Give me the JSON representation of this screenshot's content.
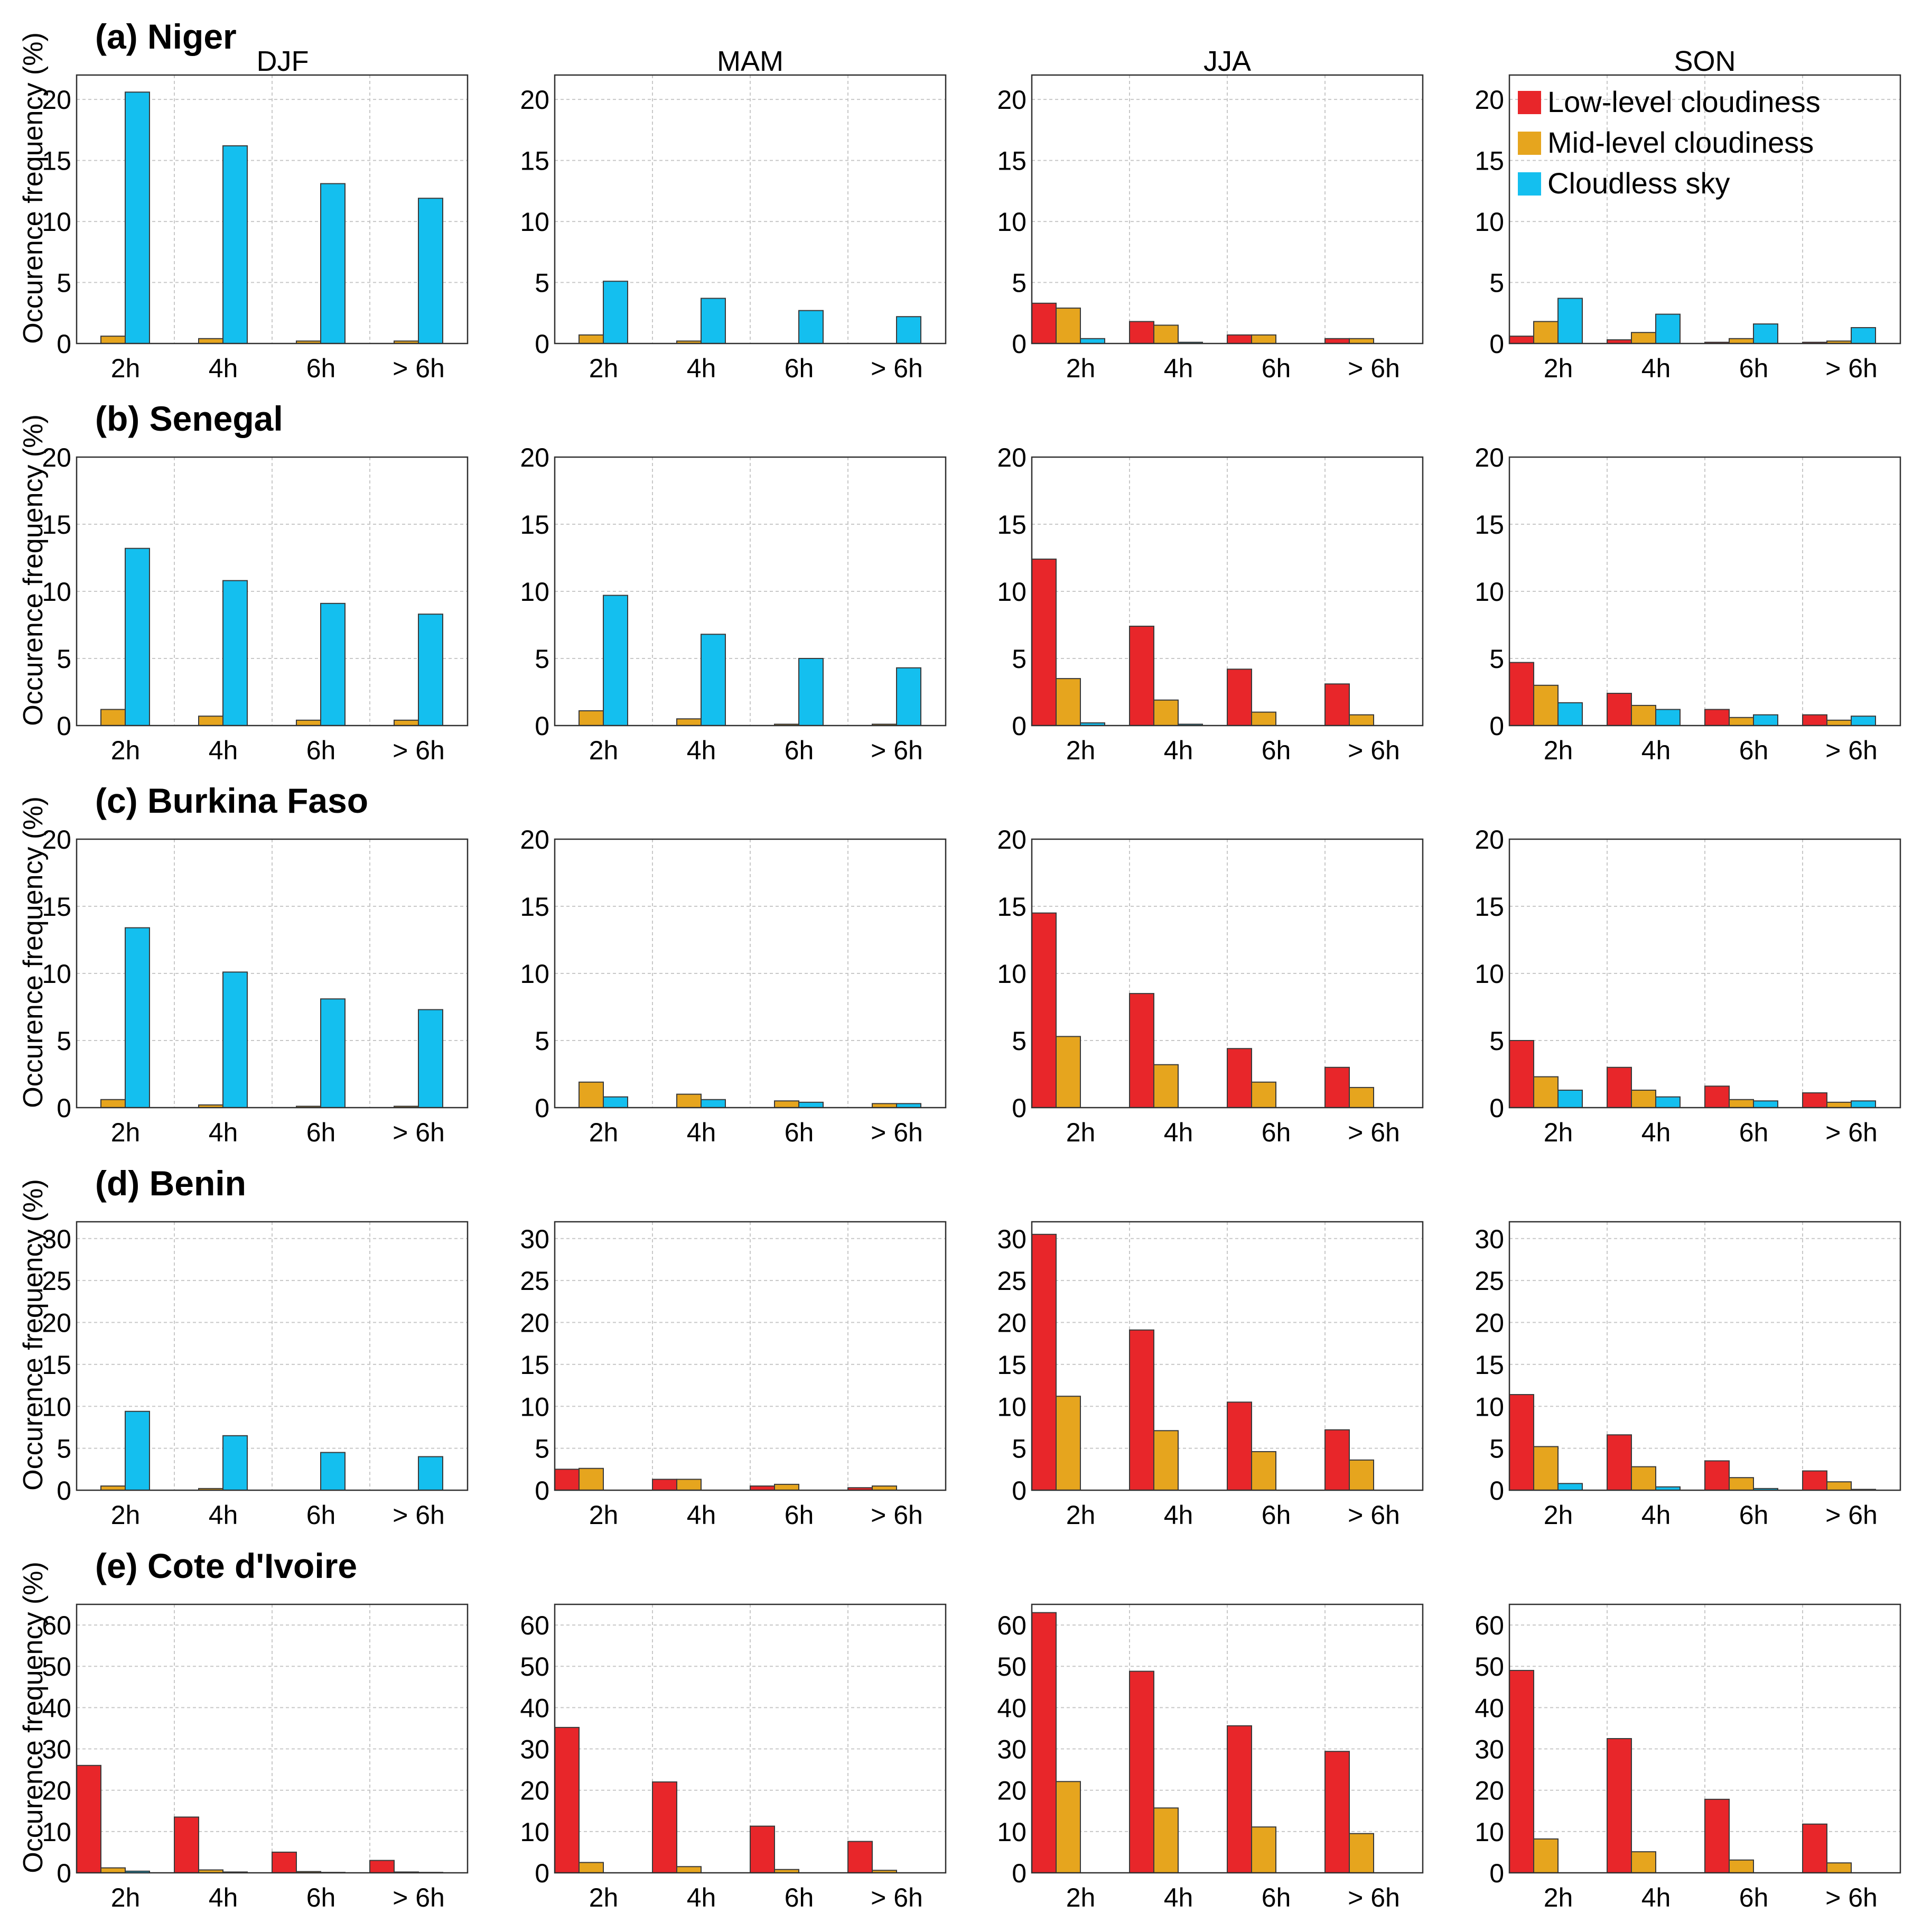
{
  "figure": {
    "ylabel": "Occurence frequency (%)",
    "seasons": [
      "DJF",
      "MAM",
      "JJA",
      "SON"
    ],
    "legend": {
      "placement": "top-right of the SON panel in row (a)",
      "items": [
        {
          "label": "Low-level cloudiness",
          "color": "#e8262a"
        },
        {
          "label": "Mid-level cloudiness",
          "color": "#e6a51e"
        },
        {
          "label": "Cloudless sky",
          "color": "#14bfef"
        }
      ]
    }
  },
  "chart_data": {
    "type": "bar",
    "categories": [
      "2h",
      "4h",
      "6h",
      "> 6h"
    ],
    "series_names": [
      "Low-level cloudiness",
      "Mid-level cloudiness",
      "Cloudless sky"
    ],
    "series_colors": [
      "#e8262a",
      "#e6a51e",
      "#14bfef"
    ],
    "rows": [
      {
        "title": "(a) Niger",
        "ylim": [
          0,
          22
        ],
        "yticks": [
          0,
          5,
          10,
          15,
          20
        ],
        "panels": [
          {
            "season": "DJF",
            "series": [
              {
                "name": "Low-level cloudiness",
                "values": [
                  0,
                  0,
                  0,
                  0
                ]
              },
              {
                "name": "Mid-level cloudiness",
                "values": [
                  0.6,
                  0.4,
                  0.2,
                  0.2
                ]
              },
              {
                "name": "Cloudless sky",
                "values": [
                  20.6,
                  16.2,
                  13.1,
                  11.9
                ]
              }
            ]
          },
          {
            "season": "MAM",
            "series": [
              {
                "name": "Low-level cloudiness",
                "values": [
                  0,
                  0,
                  0,
                  0
                ]
              },
              {
                "name": "Mid-level cloudiness",
                "values": [
                  0.7,
                  0.2,
                  0,
                  0
                ]
              },
              {
                "name": "Cloudless sky",
                "values": [
                  5.1,
                  3.7,
                  2.7,
                  2.2
                ]
              }
            ]
          },
          {
            "season": "JJA",
            "series": [
              {
                "name": "Low-level cloudiness",
                "values": [
                  3.3,
                  1.8,
                  0.7,
                  0.4
                ]
              },
              {
                "name": "Mid-level cloudiness",
                "values": [
                  2.9,
                  1.5,
                  0.7,
                  0.4
                ]
              },
              {
                "name": "Cloudless sky",
                "values": [
                  0.4,
                  0.1,
                  0,
                  0
                ]
              }
            ]
          },
          {
            "season": "SON",
            "series": [
              {
                "name": "Low-level cloudiness",
                "values": [
                  0.6,
                  0.3,
                  0.1,
                  0.1
                ]
              },
              {
                "name": "Mid-level cloudiness",
                "values": [
                  1.8,
                  0.9,
                  0.4,
                  0.2
                ]
              },
              {
                "name": "Cloudless sky",
                "values": [
                  3.7,
                  2.4,
                  1.6,
                  1.3
                ]
              }
            ]
          }
        ]
      },
      {
        "title": "(b) Senegal",
        "ylim": [
          0,
          20
        ],
        "yticks": [
          0,
          5,
          10,
          15,
          20
        ],
        "panels": [
          {
            "season": "DJF",
            "series": [
              {
                "name": "Low-level cloudiness",
                "values": [
                  0,
                  0,
                  0,
                  0
                ]
              },
              {
                "name": "Mid-level cloudiness",
                "values": [
                  1.2,
                  0.7,
                  0.4,
                  0.4
                ]
              },
              {
                "name": "Cloudless sky",
                "values": [
                  13.2,
                  10.8,
                  9.1,
                  8.3
                ]
              }
            ]
          },
          {
            "season": "MAM",
            "series": [
              {
                "name": "Low-level cloudiness",
                "values": [
                  0,
                  0,
                  0,
                  0
                ]
              },
              {
                "name": "Mid-level cloudiness",
                "values": [
                  1.1,
                  0.5,
                  0.1,
                  0.1
                ]
              },
              {
                "name": "Cloudless sky",
                "values": [
                  9.7,
                  6.8,
                  5.0,
                  4.3
                ]
              }
            ]
          },
          {
            "season": "JJA",
            "series": [
              {
                "name": "Low-level cloudiness",
                "values": [
                  12.4,
                  7.4,
                  4.2,
                  3.1
                ]
              },
              {
                "name": "Mid-level cloudiness",
                "values": [
                  3.5,
                  1.9,
                  1.0,
                  0.8
                ]
              },
              {
                "name": "Cloudless sky",
                "values": [
                  0.2,
                  0.1,
                  0,
                  0
                ]
              }
            ]
          },
          {
            "season": "SON",
            "series": [
              {
                "name": "Low-level cloudiness",
                "values": [
                  4.7,
                  2.4,
                  1.2,
                  0.8
                ]
              },
              {
                "name": "Mid-level cloudiness",
                "values": [
                  3.0,
                  1.5,
                  0.6,
                  0.4
                ]
              },
              {
                "name": "Cloudless sky",
                "values": [
                  1.7,
                  1.2,
                  0.8,
                  0.7
                ]
              }
            ]
          }
        ]
      },
      {
        "title": "(c) Burkina Faso",
        "ylim": [
          0,
          20
        ],
        "yticks": [
          0,
          5,
          10,
          15,
          20
        ],
        "panels": [
          {
            "season": "DJF",
            "series": [
              {
                "name": "Low-level cloudiness",
                "values": [
                  0,
                  0,
                  0,
                  0
                ]
              },
              {
                "name": "Mid-level cloudiness",
                "values": [
                  0.6,
                  0.2,
                  0.1,
                  0.1
                ]
              },
              {
                "name": "Cloudless sky",
                "values": [
                  13.4,
                  10.1,
                  8.1,
                  7.3
                ]
              }
            ]
          },
          {
            "season": "MAM",
            "series": [
              {
                "name": "Low-level cloudiness",
                "values": [
                  0,
                  0,
                  0,
                  0
                ]
              },
              {
                "name": "Mid-level cloudiness",
                "values": [
                  1.9,
                  1.0,
                  0.5,
                  0.3
                ]
              },
              {
                "name": "Cloudless sky",
                "values": [
                  0.8,
                  0.6,
                  0.4,
                  0.3
                ]
              }
            ]
          },
          {
            "season": "JJA",
            "series": [
              {
                "name": "Low-level cloudiness",
                "values": [
                  14.5,
                  8.5,
                  4.4,
                  3.0
                ]
              },
              {
                "name": "Mid-level cloudiness",
                "values": [
                  5.3,
                  3.2,
                  1.9,
                  1.5
                ]
              },
              {
                "name": "Cloudless sky",
                "values": [
                  0,
                  0,
                  0,
                  0
                ]
              }
            ]
          },
          {
            "season": "SON",
            "series": [
              {
                "name": "Low-level cloudiness",
                "values": [
                  5.0,
                  3.0,
                  1.6,
                  1.1
                ]
              },
              {
                "name": "Mid-level cloudiness",
                "values": [
                  2.3,
                  1.3,
                  0.6,
                  0.4
                ]
              },
              {
                "name": "Cloudless sky",
                "values": [
                  1.3,
                  0.8,
                  0.5,
                  0.5
                ]
              }
            ]
          }
        ]
      },
      {
        "title": "(d) Benin",
        "ylim": [
          0,
          32
        ],
        "yticks": [
          0,
          5,
          10,
          15,
          20,
          25,
          30
        ],
        "panels": [
          {
            "season": "DJF",
            "series": [
              {
                "name": "Low-level cloudiness",
                "values": [
                  0,
                  0,
                  0,
                  0
                ]
              },
              {
                "name": "Mid-level cloudiness",
                "values": [
                  0.5,
                  0.2,
                  0,
                  0
                ]
              },
              {
                "name": "Cloudless sky",
                "values": [
                  9.4,
                  6.5,
                  4.5,
                  4.0
                ]
              }
            ]
          },
          {
            "season": "MAM",
            "series": [
              {
                "name": "Low-level cloudiness",
                "values": [
                  2.5,
                  1.3,
                  0.5,
                  0.3
                ]
              },
              {
                "name": "Mid-level cloudiness",
                "values": [
                  2.6,
                  1.3,
                  0.7,
                  0.5
                ]
              },
              {
                "name": "Cloudless sky",
                "values": [
                  0,
                  0,
                  0,
                  0
                ]
              }
            ]
          },
          {
            "season": "JJA",
            "series": [
              {
                "name": "Low-level cloudiness",
                "values": [
                  30.5,
                  19.1,
                  10.5,
                  7.2
                ]
              },
              {
                "name": "Mid-level cloudiness",
                "values": [
                  11.2,
                  7.1,
                  4.6,
                  3.6
                ]
              },
              {
                "name": "Cloudless sky",
                "values": [
                  0,
                  0,
                  0,
                  0
                ]
              }
            ]
          },
          {
            "season": "SON",
            "series": [
              {
                "name": "Low-level cloudiness",
                "values": [
                  11.4,
                  6.6,
                  3.5,
                  2.3
                ]
              },
              {
                "name": "Mid-level cloudiness",
                "values": [
                  5.2,
                  2.8,
                  1.5,
                  1.0
                ]
              },
              {
                "name": "Cloudless sky",
                "values": [
                  0.8,
                  0.4,
                  0.2,
                  0.1
                ]
              }
            ]
          }
        ]
      },
      {
        "title": "(e) Cote d'Ivoire",
        "ylim": [
          0,
          65
        ],
        "yticks": [
          0,
          10,
          20,
          30,
          40,
          50,
          60
        ],
        "panels": [
          {
            "season": "DJF",
            "series": [
              {
                "name": "Low-level cloudiness",
                "values": [
                  26,
                  13.5,
                  5,
                  3
                ]
              },
              {
                "name": "Mid-level cloudiness",
                "values": [
                  1.2,
                  0.7,
                  0.3,
                  0.2
                ]
              },
              {
                "name": "Cloudless sky",
                "values": [
                  0.4,
                  0.2,
                  0.1,
                  0.1
                ]
              }
            ]
          },
          {
            "season": "MAM",
            "series": [
              {
                "name": "Low-level cloudiness",
                "values": [
                  35.2,
                  22,
                  11.3,
                  7.6
                ]
              },
              {
                "name": "Mid-level cloudiness",
                "values": [
                  2.5,
                  1.5,
                  0.8,
                  0.6
                ]
              },
              {
                "name": "Cloudless sky",
                "values": [
                  0,
                  0,
                  0,
                  0
                ]
              }
            ]
          },
          {
            "season": "JJA",
            "series": [
              {
                "name": "Low-level cloudiness",
                "values": [
                  63,
                  48.8,
                  35.6,
                  29.4
                ]
              },
              {
                "name": "Mid-level cloudiness",
                "values": [
                  22.1,
                  15.7,
                  11.1,
                  9.5
                ]
              },
              {
                "name": "Cloudless sky",
                "values": [
                  0,
                  0,
                  0,
                  0
                ]
              }
            ]
          },
          {
            "season": "SON",
            "series": [
              {
                "name": "Low-level cloudiness",
                "values": [
                  49,
                  32.5,
                  17.8,
                  11.8
                ]
              },
              {
                "name": "Mid-level cloudiness",
                "values": [
                  8.2,
                  5.1,
                  3.1,
                  2.4
                ]
              },
              {
                "name": "Cloudless sky",
                "values": [
                  0,
                  0,
                  0,
                  0
                ]
              }
            ]
          }
        ]
      }
    ]
  }
}
